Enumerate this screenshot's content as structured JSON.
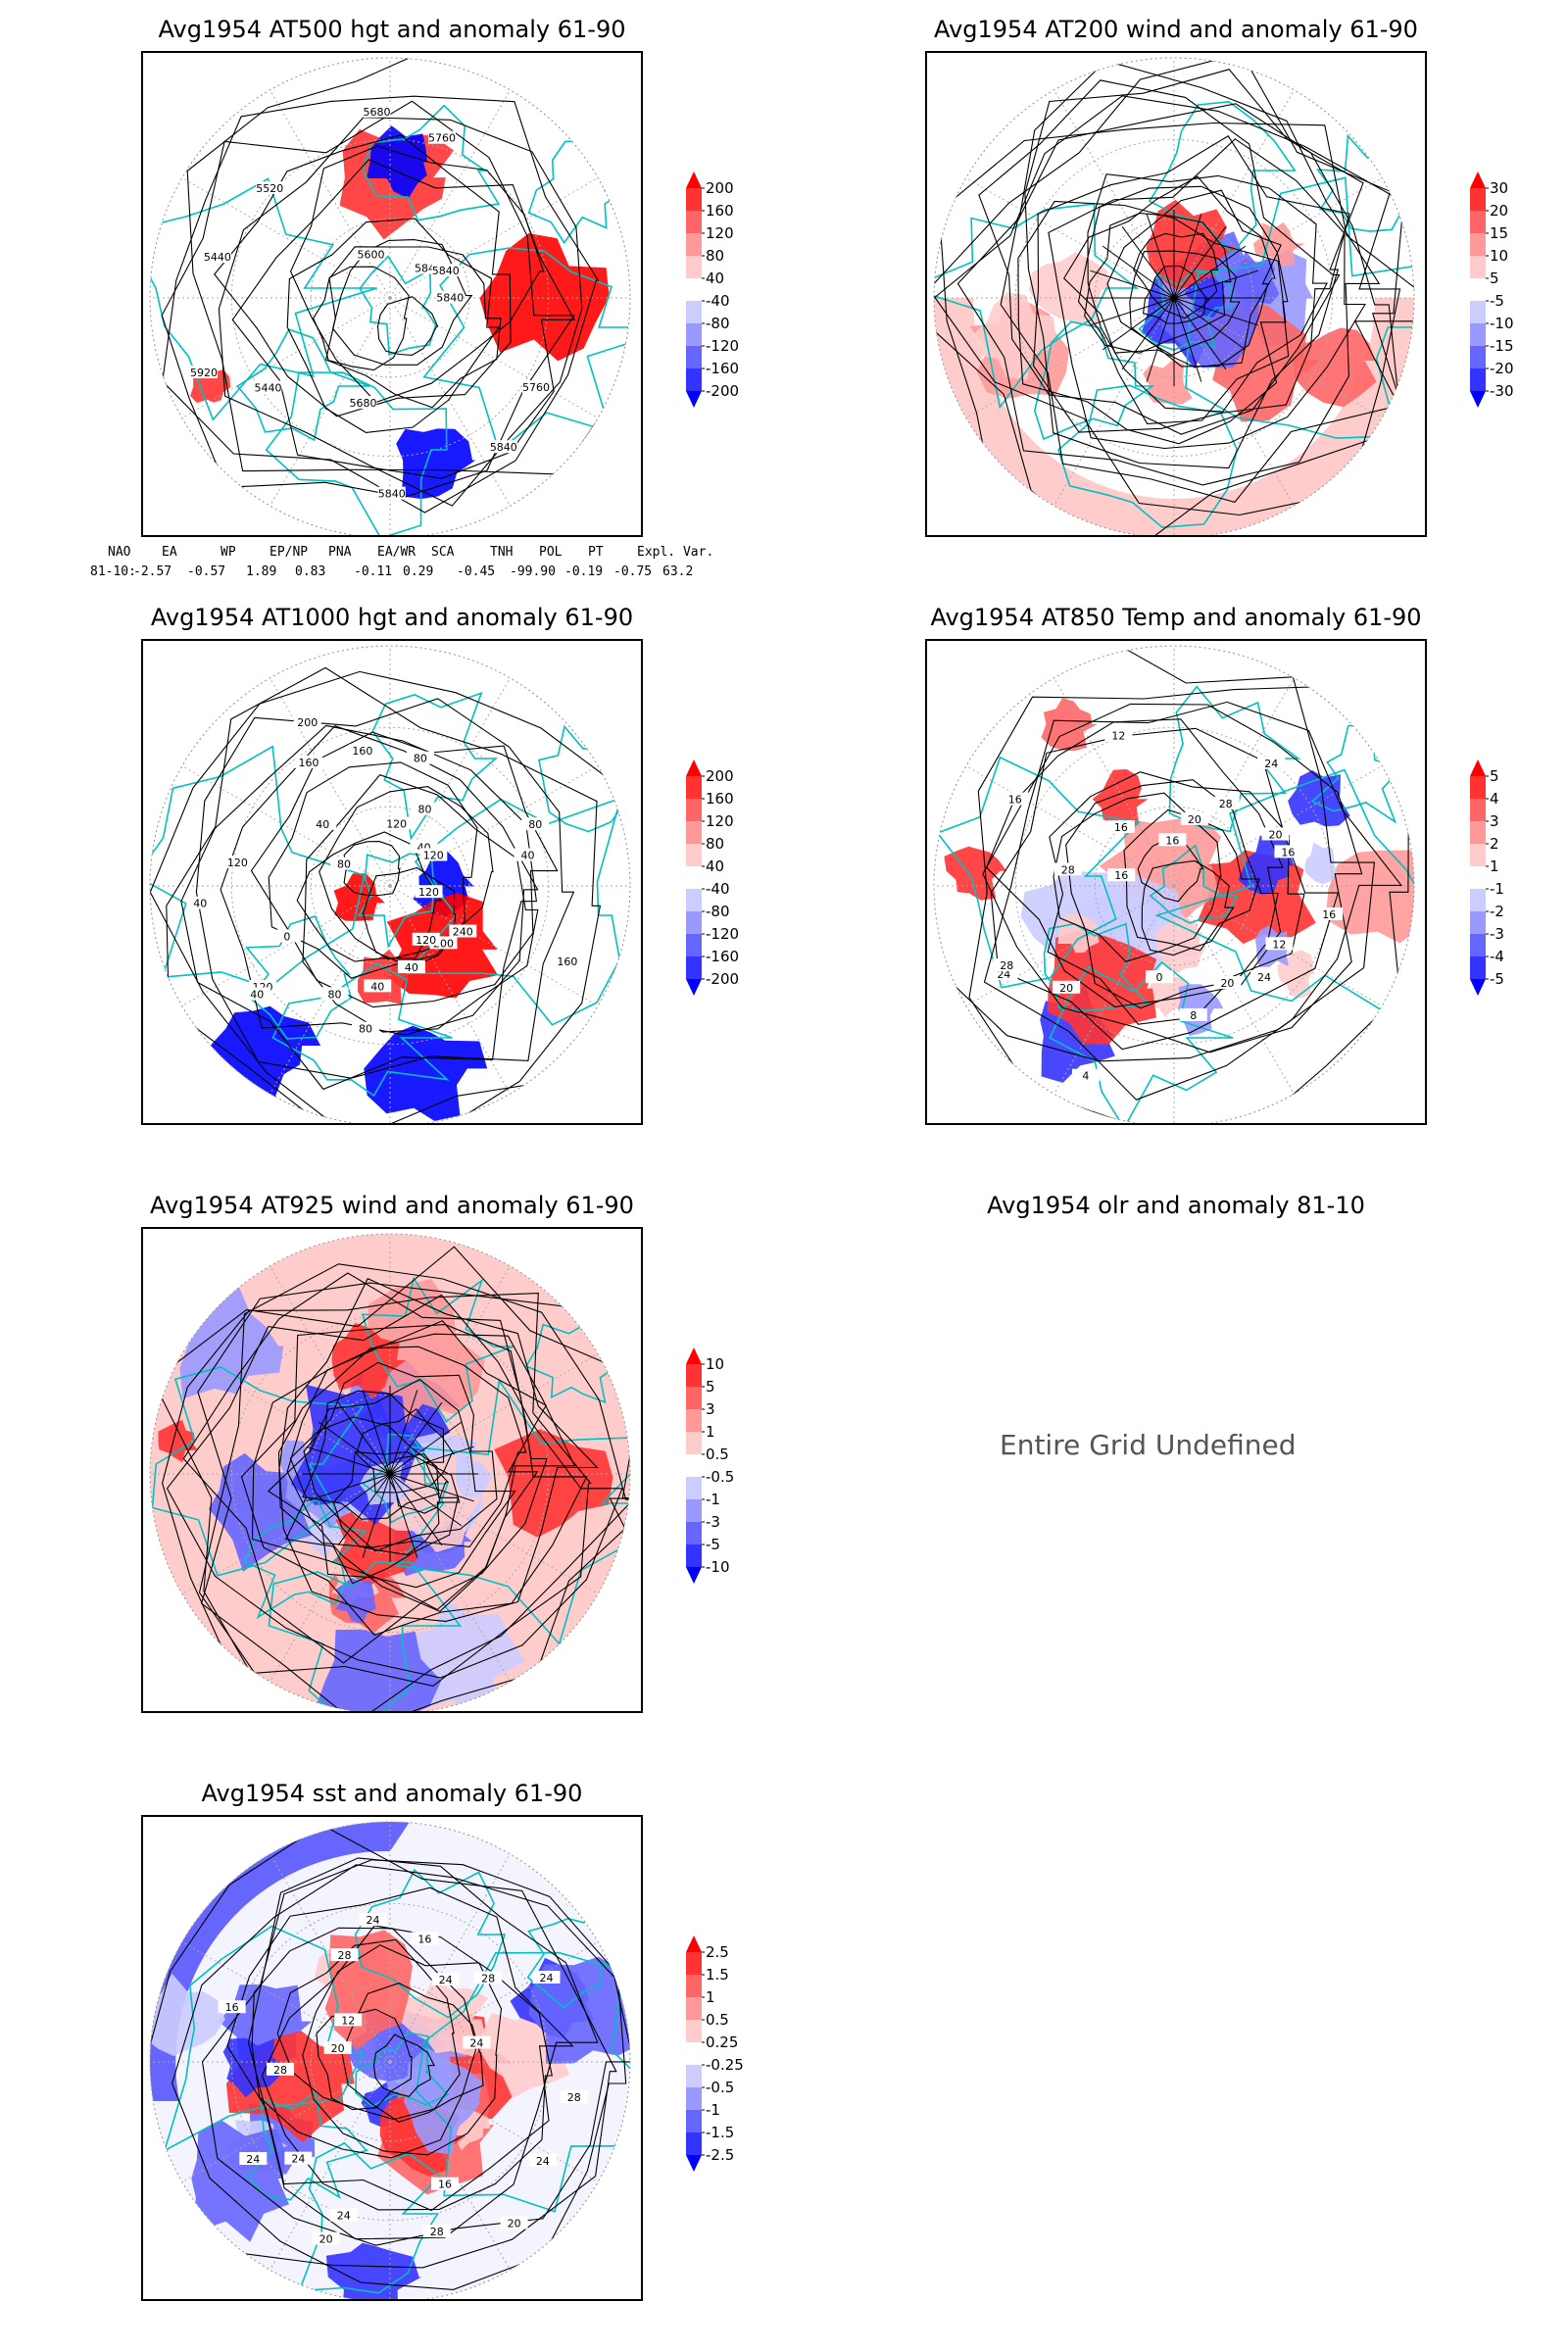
{
  "panels": [
    {
      "id": "p500",
      "title": "Avg1954 AT500 hgt and anomaly 61-90",
      "colorbar": {
        "labels": [
          "200",
          "160",
          "120",
          "80",
          "40",
          "-40",
          "-80",
          "-120",
          "-160",
          "-200"
        ]
      },
      "contour_labels": [
        "5840",
        "5760",
        "5840",
        "5840",
        "5680",
        "5440",
        "5920",
        "5440",
        "5520",
        "5600",
        "5680",
        "5760",
        "5840",
        "5840"
      ]
    },
    {
      "id": "p200",
      "title": "Avg1954 AT200 wind and anomaly 61-90",
      "colorbar": {
        "labels": [
          "30",
          "20",
          "15",
          "10",
          "5",
          "-5",
          "-10",
          "-15",
          "-20",
          "-30"
        ]
      }
    },
    {
      "id": "p1000",
      "title": "Avg1954 AT1000 hgt and anomaly 61-90",
      "colorbar": {
        "labels": [
          "200",
          "160",
          "120",
          "80",
          "40",
          "-40",
          "-80",
          "-120",
          "-160",
          "-200"
        ]
      },
      "contour_labels": [
        "120",
        "160",
        "240",
        "200",
        "120",
        "40",
        "80",
        "40",
        "80",
        "120",
        "40",
        "0",
        "40",
        "120",
        "80",
        "40",
        "160",
        "200",
        "160",
        "120",
        "80",
        "80",
        "40",
        "120",
        "80",
        "40"
      ]
    },
    {
      "id": "p850",
      "title": "Avg1954 AT850 Temp and anomaly 61-90",
      "colorbar": {
        "labels": [
          "5",
          "4",
          "3",
          "2",
          "1",
          "-1",
          "-2",
          "-3",
          "-4",
          "-5"
        ]
      },
      "contour_labels": [
        "16",
        "12",
        "24",
        "20",
        "8",
        "0",
        "4",
        "20",
        "24",
        "28",
        "28",
        "16",
        "16",
        "16",
        "12",
        "16",
        "20",
        "28",
        "24",
        "20",
        "16"
      ]
    },
    {
      "id": "p925",
      "title": "Avg1954 AT925 wind and anomaly 61-90",
      "colorbar": {
        "labels": [
          "10",
          "5",
          "3",
          "1",
          "0.5",
          "-0.5",
          "-1",
          "-3",
          "-5",
          "-10"
        ]
      }
    },
    {
      "id": "polr",
      "title": "Avg1954 olr and anomaly 81-10",
      "undefined_text": "Entire Grid Undefined"
    },
    {
      "id": "psst",
      "title": "Avg1954 sst and anomaly 61-90",
      "colorbar": {
        "labels": [
          "2.5",
          "1.5",
          "1",
          "0.5",
          "0.25",
          "-0.25",
          "-0.5",
          "-1",
          "-1.5",
          "-2.5"
        ]
      },
      "contour_labels": [
        "28",
        "24",
        "20",
        "16",
        "28",
        "24",
        "20",
        "24",
        "24",
        "28",
        "20",
        "16",
        "12",
        "28",
        "24",
        "16",
        "24",
        "28",
        "24",
        "24"
      ]
    }
  ],
  "teleconnection": {
    "header": [
      "NAO",
      "EA",
      "WP",
      "EP/NP",
      "PNA",
      "EA/WR",
      "SCA",
      "TNH",
      "POL",
      "PT",
      "Expl. Var."
    ],
    "row_label": "81-10:",
    "values": [
      "-2.57",
      "-0.57",
      "1.89",
      "0.83",
      "-0.11",
      "0.29",
      "-0.45",
      "-99.90",
      "-0.19",
      "-0.75",
      "63.2"
    ]
  },
  "colors": {
    "anomaly_pos": [
      "#ff0000",
      "#ff3333",
      "#ff6666",
      "#ff9999",
      "#ffcccc"
    ],
    "anomaly_neg": [
      "#ccccff",
      "#9999ff",
      "#6666ff",
      "#3333ff",
      "#0000ff"
    ],
    "coastline": "#00c0c0",
    "contour": "#000000",
    "grid": "#aaaaaa"
  }
}
